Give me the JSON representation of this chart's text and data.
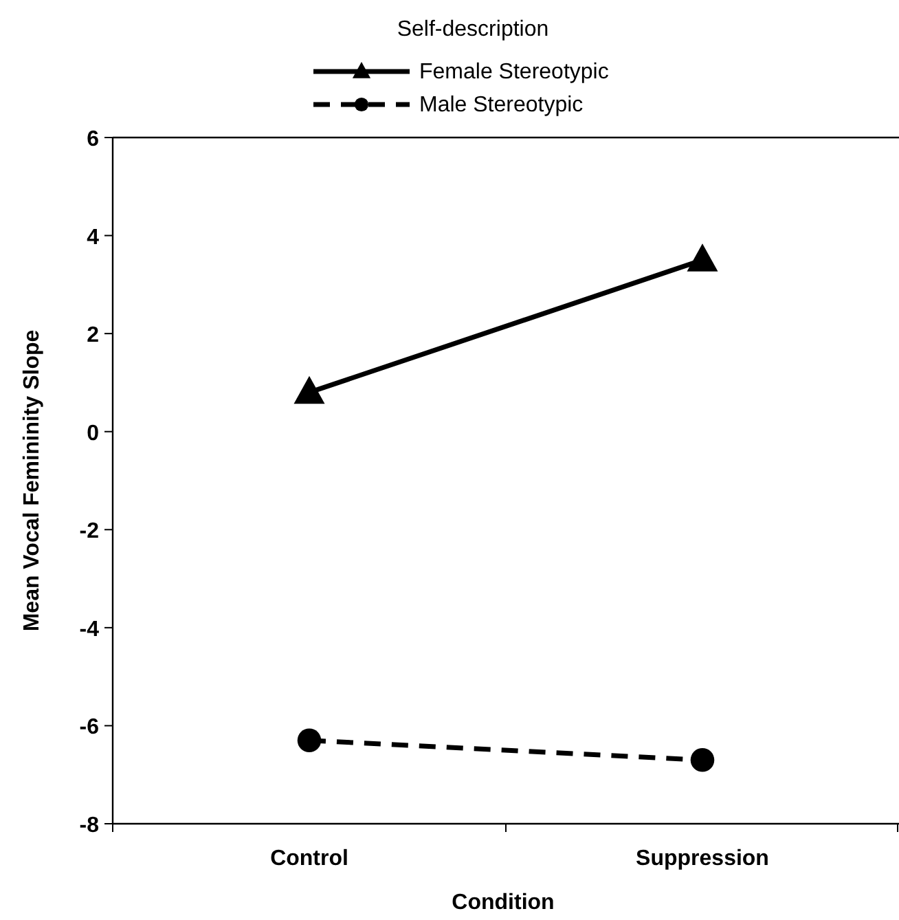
{
  "chart_data": {
    "type": "line",
    "legend_title": "Self-description",
    "xlabel": "Condition",
    "ylabel": "Mean Vocal Femininity Slope",
    "categories": [
      "Control",
      "Suppression"
    ],
    "series": [
      {
        "name": "Female Stereotypic",
        "color": "#000000",
        "values": [
          0.8,
          3.5
        ],
        "marker": "triangle",
        "line_style": "solid"
      },
      {
        "name": "Male Stereotypic",
        "color": "#000000",
        "values": [
          -6.3,
          -6.7
        ],
        "marker": "circle",
        "line_style": "dashed"
      }
    ],
    "ylim": [
      -8,
      6
    ],
    "yticks": [
      -8,
      -6,
      -4,
      -2,
      0,
      2,
      4,
      6
    ],
    "grid": false,
    "legend": "top"
  }
}
